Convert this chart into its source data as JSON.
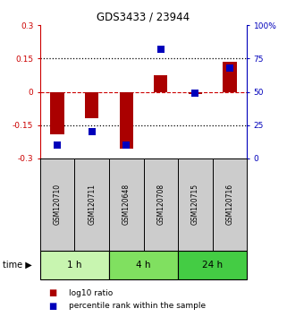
{
  "title": "GDS3433 / 23944",
  "samples": [
    "GSM120710",
    "GSM120711",
    "GSM120648",
    "GSM120708",
    "GSM120715",
    "GSM120716"
  ],
  "log10_ratio": [
    -0.19,
    -0.12,
    -0.255,
    0.075,
    -0.01,
    0.135
  ],
  "percentile_rank": [
    10,
    20,
    10,
    82,
    49,
    68
  ],
  "groups": [
    {
      "label": "1 h",
      "start": 0,
      "end": 2,
      "color": "#c8f5b0"
    },
    {
      "label": "4 h",
      "start": 2,
      "end": 4,
      "color": "#80e060"
    },
    {
      "label": "24 h",
      "start": 4,
      "end": 6,
      "color": "#44cc44"
    }
  ],
  "bar_color": "#aa0000",
  "dot_color": "#0000bb",
  "ylim_left": [
    -0.3,
    0.3
  ],
  "ylim_right": [
    0,
    100
  ],
  "yticks_left": [
    -0.3,
    -0.15,
    0,
    0.15,
    0.3
  ],
  "yticks_right": [
    0,
    25,
    50,
    75,
    100
  ],
  "ytick_labels_left": [
    "-0.3",
    "-0.15",
    "0",
    "0.15",
    "0.3"
  ],
  "ytick_labels_right": [
    "0",
    "25",
    "50",
    "75",
    "100%"
  ],
  "sample_box_color": "#cccccc",
  "legend_items": [
    {
      "label": "log10 ratio",
      "color": "#aa0000"
    },
    {
      "label": "percentile rank within the sample",
      "color": "#0000bb"
    }
  ],
  "time_label": "time",
  "bar_width": 0.4,
  "dot_size": 30
}
